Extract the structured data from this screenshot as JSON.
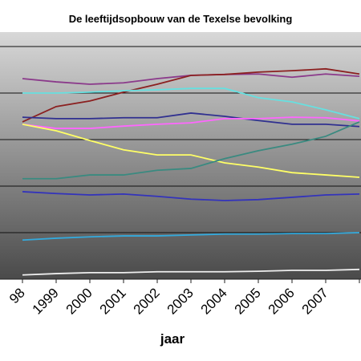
{
  "chart_data": {
    "type": "line",
    "title": "De leeftijdsopbouw van de Texelse bevolking",
    "x_label": "jaar",
    "categories": [
      "98",
      "1999",
      "2000",
      "2001",
      "2002",
      "2003",
      "2004",
      "2005",
      "2006",
      "2007",
      null
    ],
    "ylim": [
      0,
      5.3
    ],
    "yticks": [
      1,
      2,
      3,
      4,
      5
    ],
    "grid": true,
    "series": [
      {
        "color": "#8b3a8b",
        "values": [
          4.31,
          4.24,
          4.19,
          4.22,
          4.31,
          4.38,
          4.4,
          4.41,
          4.34,
          4.41,
          4.36
        ]
      },
      {
        "color": "#8b2020",
        "values": [
          3.38,
          3.71,
          3.83,
          4.02,
          4.19,
          4.38,
          4.4,
          4.45,
          4.48,
          4.52,
          4.41
        ]
      },
      {
        "color": "#66e0e0",
        "values": [
          4.0,
          4.0,
          4.02,
          4.05,
          4.07,
          4.1,
          4.1,
          3.9,
          3.81,
          3.64,
          3.45
        ]
      },
      {
        "color": "#303090",
        "values": [
          3.48,
          3.45,
          3.45,
          3.47,
          3.47,
          3.57,
          3.5,
          3.41,
          3.33,
          3.33,
          3.28
        ]
      },
      {
        "color": "#ff66ff",
        "values": [
          3.33,
          3.24,
          3.24,
          3.29,
          3.33,
          3.36,
          3.45,
          3.45,
          3.48,
          3.47,
          3.4
        ]
      },
      {
        "color": "#ffff66",
        "values": [
          3.33,
          3.19,
          2.98,
          2.78,
          2.67,
          2.67,
          2.5,
          2.41,
          2.29,
          2.24,
          2.19
        ]
      },
      {
        "color": "#3a8a80",
        "values": [
          2.16,
          2.16,
          2.24,
          2.24,
          2.34,
          2.38,
          2.59,
          2.76,
          2.9,
          3.07,
          3.38
        ]
      },
      {
        "color": "#3333bb",
        "values": [
          1.88,
          1.84,
          1.81,
          1.83,
          1.78,
          1.72,
          1.69,
          1.71,
          1.76,
          1.81,
          1.83
        ]
      },
      {
        "color": "#33aadd",
        "values": [
          0.84,
          0.88,
          0.91,
          0.93,
          0.93,
          0.95,
          0.97,
          0.97,
          0.98,
          0.98,
          1.0
        ]
      },
      {
        "color": "#eeeeee",
        "values": [
          0.09,
          0.12,
          0.14,
          0.14,
          0.16,
          0.16,
          0.16,
          0.17,
          0.19,
          0.19,
          0.21
        ]
      }
    ]
  }
}
